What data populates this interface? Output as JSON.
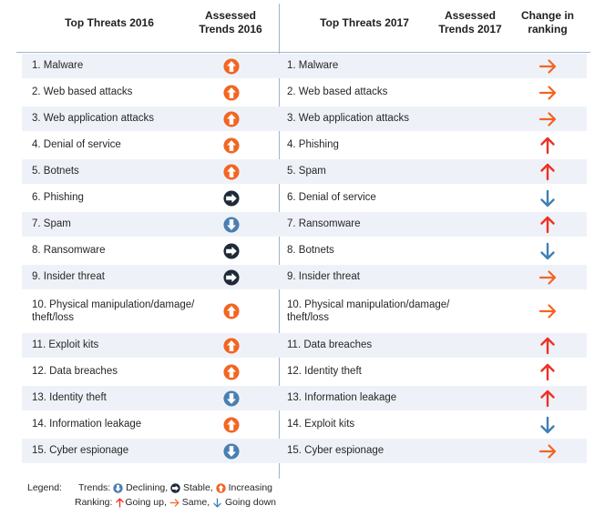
{
  "headers": {
    "threats_2016": "Top Threats 2016",
    "assessed_2016_line1": "Assessed",
    "assessed_2016_line2": "Trends 2016",
    "threats_2017": "Top Threats 2017",
    "assessed_2017_line1": "Assessed",
    "assessed_2017_line2": "Trends 2017",
    "change_line1": "Change in",
    "change_line2": "ranking"
  },
  "colors": {
    "increasing": "#f26522",
    "stable": "#1f2a38",
    "declining": "#4a7fb0",
    "arrow_orange": "#f26522",
    "arrow_red": "#ee3124",
    "arrow_blue": "#3f7fb5",
    "band": "#eef2f8",
    "separator": "#9fb6cc"
  },
  "rows": [
    {
      "t2016": "1. Malware",
      "trend": "increasing",
      "t2017": "1. Malware",
      "change": "same"
    },
    {
      "t2016": "2. Web based attacks",
      "trend": "increasing",
      "t2017": "2. Web based attacks",
      "change": "same"
    },
    {
      "t2016": "3. Web application attacks",
      "trend": "increasing",
      "t2017": "3. Web application attacks",
      "change": "same"
    },
    {
      "t2016": "4. Denial of service",
      "trend": "increasing",
      "t2017": "4. Phishing",
      "change": "up"
    },
    {
      "t2016": "5. Botnets",
      "trend": "increasing",
      "t2017": "5. Spam",
      "change": "up"
    },
    {
      "t2016": "6. Phishing",
      "trend": "stable",
      "t2017": "6. Denial of service",
      "change": "down"
    },
    {
      "t2016": "7. Spam",
      "trend": "declining",
      "t2017": "7. Ransomware",
      "change": "up"
    },
    {
      "t2016": "8. Ransomware",
      "trend": "stable",
      "t2017": "8. Botnets",
      "change": "down"
    },
    {
      "t2016": "9. Insider threat",
      "trend": "stable",
      "t2017": "9. Insider threat",
      "change": "same"
    },
    {
      "t2016": "10. Physical manipulation/damage/ theft/loss",
      "trend": "increasing",
      "t2017": "10. Physical manipulation/damage/ theft/loss",
      "change": "same",
      "tall": true
    },
    {
      "t2016": "11. Exploit kits",
      "trend": "increasing",
      "t2017": "11. Data breaches",
      "change": "up"
    },
    {
      "t2016": "12. Data breaches",
      "trend": "increasing",
      "t2017": "12. Identity theft",
      "change": "up"
    },
    {
      "t2016": "13. Identity theft",
      "trend": "declining",
      "t2017": "13. Information leakage",
      "change": "up"
    },
    {
      "t2016": "14. Information leakage",
      "trend": "increasing",
      "t2017": "14. Exploit kits",
      "change": "down"
    },
    {
      "t2016": "15. Cyber espionage",
      "trend": "declining",
      "t2017": "15. Cyber espionage",
      "change": "same"
    }
  ],
  "legend": {
    "label": "Legend:",
    "trends_label": "Trends:",
    "declining": "Declining,",
    "stable": "Stable,",
    "increasing": "Increasing",
    "ranking_label": "Ranking:",
    "going_up": "Going up,",
    "same": "Same,",
    "going_down": "Going down"
  }
}
